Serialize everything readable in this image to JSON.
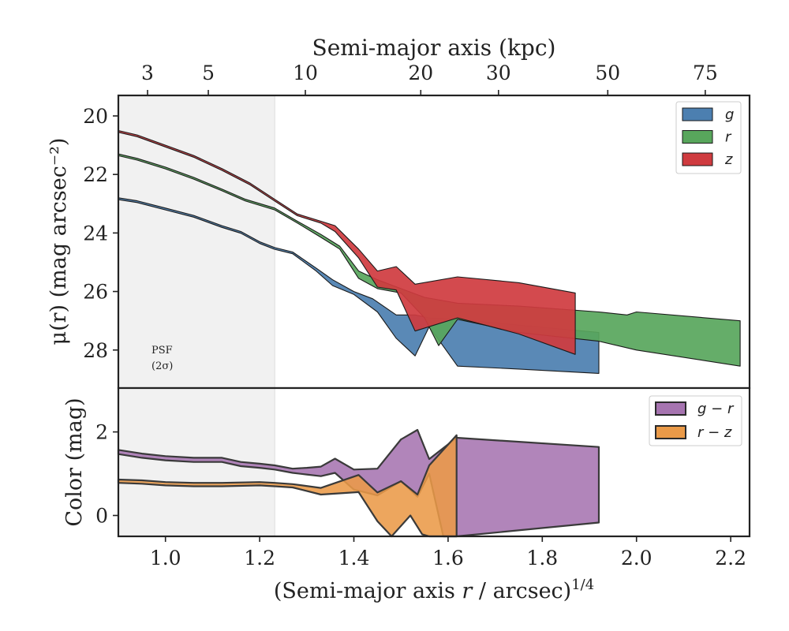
{
  "chart_data": [
    {
      "type": "area",
      "panel": "surface-brightness",
      "ylabel": "μ(r) (mag arcsec⁻²)",
      "top_xlabel": "Semi-major axis (kpc)",
      "top_ticks": [
        {
          "label": "3",
          "x": 0.962
        },
        {
          "label": "5",
          "x": 1.091
        },
        {
          "label": "10",
          "x": 1.297
        },
        {
          "label": "20",
          "x": 1.542
        },
        {
          "label": "30",
          "x": 1.707
        },
        {
          "label": "50",
          "x": 1.939
        },
        {
          "label": "75",
          "x": 2.146
        }
      ],
      "xlim": [
        0.9,
        2.24
      ],
      "ylim": [
        29.3,
        19.3
      ],
      "yticks": [
        20,
        22,
        24,
        26,
        28
      ],
      "psf_region": {
        "x_max": 1.232,
        "label_line1": "PSF",
        "label_line2": "(2σ)"
      },
      "legend": {
        "position": "top-right",
        "entries": [
          "g",
          "r",
          "z"
        ]
      },
      "series": [
        {
          "name": "g",
          "color": "#4c7fb0",
          "upper": [
            [
              0.9,
              22.8
            ],
            [
              0.94,
              22.9
            ],
            [
              1.0,
              23.15
            ],
            [
              1.06,
              23.4
            ],
            [
              1.12,
              23.75
            ],
            [
              1.16,
              23.95
            ],
            [
              1.2,
              24.3
            ],
            [
              1.232,
              24.5
            ],
            [
              1.27,
              24.65
            ],
            [
              1.32,
              25.2
            ],
            [
              1.355,
              25.6
            ],
            [
              1.4,
              26.0
            ],
            [
              1.44,
              26.25
            ],
            [
              1.49,
              26.8
            ],
            [
              1.53,
              26.8
            ],
            [
              1.56,
              26.9
            ],
            [
              1.62,
              26.95
            ],
            [
              1.75,
              27.15
            ],
            [
              1.92,
              27.4
            ]
          ],
          "lower": [
            [
              0.9,
              22.86
            ],
            [
              0.94,
              22.96
            ],
            [
              1.0,
              23.21
            ],
            [
              1.06,
              23.46
            ],
            [
              1.12,
              23.81
            ],
            [
              1.16,
              24.01
            ],
            [
              1.2,
              24.36
            ],
            [
              1.232,
              24.56
            ],
            [
              1.27,
              24.71
            ],
            [
              1.32,
              25.3
            ],
            [
              1.355,
              25.8
            ],
            [
              1.4,
              26.1
            ],
            [
              1.45,
              26.7
            ],
            [
              1.49,
              27.6
            ],
            [
              1.53,
              28.2
            ],
            [
              1.56,
              27.2
            ],
            [
              1.62,
              28.55
            ],
            [
              1.75,
              28.65
            ],
            [
              1.92,
              28.8
            ]
          ]
        },
        {
          "name": "r",
          "color": "#58a65c",
          "upper": [
            [
              0.9,
              21.3
            ],
            [
              0.94,
              21.45
            ],
            [
              1.0,
              21.75
            ],
            [
              1.06,
              22.1
            ],
            [
              1.12,
              22.5
            ],
            [
              1.17,
              22.85
            ],
            [
              1.232,
              23.15
            ],
            [
              1.28,
              23.6
            ],
            [
              1.33,
              24.05
            ],
            [
              1.37,
              24.45
            ],
            [
              1.41,
              25.3
            ],
            [
              1.45,
              25.6
            ],
            [
              1.5,
              25.9
            ],
            [
              1.55,
              26.2
            ],
            [
              1.62,
              26.4
            ],
            [
              1.75,
              26.5
            ],
            [
              1.92,
              26.7
            ],
            [
              1.98,
              26.8
            ],
            [
              2.0,
              26.7
            ],
            [
              2.22,
              27.0
            ]
          ],
          "lower": [
            [
              0.9,
              21.36
            ],
            [
              0.94,
              21.51
            ],
            [
              1.0,
              21.81
            ],
            [
              1.06,
              22.16
            ],
            [
              1.12,
              22.56
            ],
            [
              1.17,
              22.91
            ],
            [
              1.232,
              23.21
            ],
            [
              1.28,
              23.66
            ],
            [
              1.33,
              24.15
            ],
            [
              1.37,
              24.55
            ],
            [
              1.41,
              25.55
            ],
            [
              1.45,
              25.9
            ],
            [
              1.5,
              26.05
            ],
            [
              1.55,
              26.9
            ],
            [
              1.58,
              27.85
            ],
            [
              1.62,
              26.95
            ],
            [
              1.75,
              27.4
            ],
            [
              1.92,
              27.7
            ],
            [
              2.0,
              28.0
            ],
            [
              2.22,
              28.55
            ]
          ]
        },
        {
          "name": "z",
          "color": "#cf3b3f",
          "upper": [
            [
              0.9,
              20.5
            ],
            [
              0.94,
              20.65
            ],
            [
              1.0,
              21.0
            ],
            [
              1.06,
              21.35
            ],
            [
              1.12,
              21.8
            ],
            [
              1.18,
              22.3
            ],
            [
              1.232,
              22.85
            ],
            [
              1.28,
              23.35
            ],
            [
              1.33,
              23.6
            ],
            [
              1.36,
              23.75
            ],
            [
              1.41,
              24.55
            ],
            [
              1.45,
              25.3
            ],
            [
              1.49,
              25.15
            ],
            [
              1.53,
              25.75
            ],
            [
              1.62,
              25.5
            ],
            [
              1.75,
              25.7
            ],
            [
              1.87,
              26.05
            ]
          ],
          "lower": [
            [
              0.9,
              20.56
            ],
            [
              0.94,
              20.71
            ],
            [
              1.0,
              21.06
            ],
            [
              1.06,
              21.41
            ],
            [
              1.12,
              21.86
            ],
            [
              1.18,
              22.36
            ],
            [
              1.232,
              22.91
            ],
            [
              1.28,
              23.41
            ],
            [
              1.33,
              23.66
            ],
            [
              1.36,
              23.95
            ],
            [
              1.41,
              24.85
            ],
            [
              1.45,
              25.85
            ],
            [
              1.49,
              25.95
            ],
            [
              1.53,
              27.35
            ],
            [
              1.62,
              26.9
            ],
            [
              1.75,
              27.45
            ],
            [
              1.87,
              28.15
            ]
          ]
        }
      ]
    },
    {
      "type": "area",
      "panel": "color-profile",
      "xlabel": "(Semi-major axis r / arcsec)^1/4",
      "xlabel_main": "(Semi-major axis ",
      "xlabel_var": "r",
      "xlabel_rest": " / arcsec)",
      "xlabel_exp": "1/4",
      "ylabel": "Color (mag)",
      "xlim": [
        0.9,
        2.24
      ],
      "ylim": [
        -0.5,
        3.05
      ],
      "xticks": [
        1.0,
        1.2,
        1.4,
        1.6,
        1.8,
        2.0,
        2.2
      ],
      "xtick_labels": [
        "1.0",
        "1.2",
        "1.4",
        "1.6",
        "1.8",
        "2.0",
        "2.2"
      ],
      "yticks": [
        0,
        2
      ],
      "legend": {
        "position": "top-right",
        "entries": [
          "g − r",
          "r − z"
        ]
      },
      "series": [
        {
          "name": "g − r",
          "color": "#a674b0",
          "upper": [
            [
              0.9,
              1.57
            ],
            [
              0.95,
              1.48
            ],
            [
              1.0,
              1.42
            ],
            [
              1.06,
              1.38
            ],
            [
              1.12,
              1.38
            ],
            [
              1.16,
              1.28
            ],
            [
              1.2,
              1.24
            ],
            [
              1.232,
              1.2
            ],
            [
              1.27,
              1.12
            ],
            [
              1.3,
              1.14
            ],
            [
              1.33,
              1.17
            ],
            [
              1.36,
              1.36
            ],
            [
              1.4,
              1.1
            ],
            [
              1.45,
              1.12
            ],
            [
              1.5,
              1.82
            ],
            [
              1.535,
              2.05
            ],
            [
              1.56,
              1.35
            ],
            [
              1.618,
              1.86
            ],
            [
              1.92,
              1.64
            ]
          ],
          "lower": [
            [
              0.9,
              1.47
            ],
            [
              0.95,
              1.38
            ],
            [
              1.0,
              1.32
            ],
            [
              1.06,
              1.28
            ],
            [
              1.12,
              1.28
            ],
            [
              1.16,
              1.18
            ],
            [
              1.2,
              1.14
            ],
            [
              1.232,
              1.1
            ],
            [
              1.27,
              1.02
            ],
            [
              1.3,
              0.98
            ],
            [
              1.33,
              0.94
            ],
            [
              1.36,
              1.02
            ],
            [
              1.4,
              0.62
            ],
            [
              1.45,
              0.48
            ],
            [
              1.5,
              0.82
            ],
            [
              1.535,
              0.45
            ],
            [
              1.56,
              1.0
            ],
            [
              1.59,
              -0.5
            ],
            [
              1.618,
              -0.5
            ],
            [
              1.92,
              -0.17
            ]
          ]
        },
        {
          "name": "r − z",
          "color": "#ea9a48",
          "upper": [
            [
              0.9,
              0.86
            ],
            [
              0.95,
              0.84
            ],
            [
              1.0,
              0.8
            ],
            [
              1.06,
              0.78
            ],
            [
              1.12,
              0.78
            ],
            [
              1.2,
              0.8
            ],
            [
              1.232,
              0.78
            ],
            [
              1.27,
              0.75
            ],
            [
              1.33,
              0.66
            ],
            [
              1.41,
              0.97
            ],
            [
              1.45,
              0.55
            ],
            [
              1.5,
              0.82
            ],
            [
              1.535,
              0.5
            ],
            [
              1.56,
              1.2
            ],
            [
              1.618,
              1.92
            ]
          ],
          "lower": [
            [
              0.9,
              0.78
            ],
            [
              0.95,
              0.76
            ],
            [
              1.0,
              0.72
            ],
            [
              1.06,
              0.7
            ],
            [
              1.12,
              0.7
            ],
            [
              1.2,
              0.72
            ],
            [
              1.232,
              0.7
            ],
            [
              1.27,
              0.67
            ],
            [
              1.33,
              0.5
            ],
            [
              1.41,
              0.56
            ],
            [
              1.45,
              -0.14
            ],
            [
              1.48,
              -0.5
            ],
            [
              1.52,
              0.0
            ],
            [
              1.545,
              -0.45
            ],
            [
              1.56,
              -0.5
            ],
            [
              1.618,
              -0.5
            ]
          ]
        }
      ]
    }
  ]
}
